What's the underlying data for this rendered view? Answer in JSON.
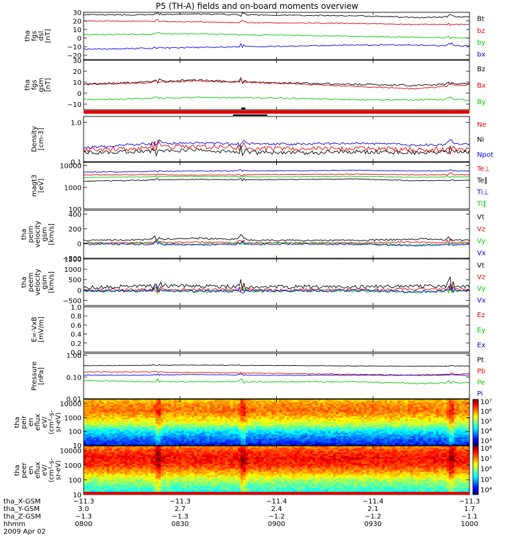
{
  "title": "P5 (TH-A) fields and on-board moments overview",
  "colors": {
    "black": "#000000",
    "red": "#e00000",
    "green": "#00c800",
    "blue": "#0000e0"
  },
  "chart_data": [
    {
      "id": "fgs_dsl",
      "type": "line",
      "ylabel": [
        "tha",
        "fgs",
        "dsl",
        "[nT]"
      ],
      "ylim": [
        -25,
        30
      ],
      "scale": "linear",
      "ticks": [
        {
          "v": 30,
          "t": "30"
        },
        {
          "v": 20,
          "t": "20"
        },
        {
          "v": 10,
          "t": "10"
        },
        {
          "v": 0,
          "t": "0"
        },
        {
          "v": -10,
          "t": "−10"
        },
        {
          "v": -20,
          "t": "−20"
        }
      ],
      "series": [
        {
          "name": "Bt",
          "color": "#000000",
          "base": [
            27,
            27,
            28,
            27,
            26.5,
            26,
            24,
            25
          ],
          "noise": 0.6
        },
        {
          "name": "bz",
          "color": "#e00000",
          "base": [
            20,
            19.5,
            19,
            18,
            17.5,
            17,
            16,
            16
          ],
          "noise": 0.5
        },
        {
          "name": "by",
          "color": "#00c800",
          "base": [
            4,
            4.5,
            5,
            4,
            3,
            2,
            1,
            0
          ],
          "noise": 0.6
        },
        {
          "name": "bx",
          "color": "#0000e0",
          "base": [
            -13,
            -12,
            -11,
            -10,
            -9,
            -8,
            -8,
            -9
          ],
          "noise": 0.7
        }
      ]
    },
    {
      "id": "fgs_gsm",
      "type": "line",
      "ylabel": [
        "tha",
        "fgs",
        "gsm",
        "[nT]"
      ],
      "ylim": [
        -15,
        30
      ],
      "scale": "linear",
      "ticks": [
        {
          "v": 30,
          "t": "30"
        },
        {
          "v": 20,
          "t": "20"
        },
        {
          "v": 10,
          "t": "10"
        },
        {
          "v": 0,
          "t": "0"
        },
        {
          "v": -10,
          "t": "−10"
        }
      ],
      "series": [
        {
          "name": "Bz",
          "color": "#000000",
          "base": [
            8,
            10,
            12,
            10,
            9,
            8,
            7,
            9
          ],
          "noise": 0.8
        },
        {
          "name": "Bx",
          "color": "#e00000",
          "base": [
            8,
            9,
            11,
            10,
            8,
            6,
            4,
            8
          ],
          "noise": 0.6
        },
        {
          "name": "By",
          "color": "#00c800",
          "base": [
            -6,
            -5,
            -4,
            -4,
            -5,
            -6,
            -6,
            -6
          ],
          "noise": 0.6
        }
      ]
    },
    {
      "id": "density",
      "type": "line",
      "ylabel": [
        "Density",
        "[cm-3]"
      ],
      "ylim": [
        0.1,
        1.4
      ],
      "scale": "log",
      "ticks": [
        {
          "v": 1.0,
          "t": "1.0"
        },
        {
          "v": 0.1,
          "t": "0.1"
        }
      ],
      "series": [
        {
          "name": "Ne",
          "color": "#e00000",
          "base": [
            0.2,
            0.22,
            0.25,
            0.22,
            0.21,
            0.22,
            0.2,
            0.2
          ],
          "noise": 0.03
        },
        {
          "name": "Ni",
          "color": "#000000",
          "base": [
            0.17,
            0.18,
            0.2,
            0.17,
            0.17,
            0.18,
            0.17,
            0.18
          ],
          "noise": 0.02
        },
        {
          "name": "Npot",
          "color": "#0000e0",
          "base": [
            0.22,
            0.28,
            0.3,
            0.28,
            0.28,
            0.3,
            0.26,
            0.28
          ],
          "noise": 0.02
        }
      ]
    },
    {
      "id": "temp",
      "type": "line",
      "ylabel": [
        "magt3",
        "[eV]"
      ],
      "ylim": [
        100,
        14000
      ],
      "scale": "log",
      "ticks": [
        {
          "v": 10000,
          "t": "10000"
        },
        {
          "v": 1000,
          "t": "1000"
        },
        {
          "v": 100,
          "t": "100"
        }
      ],
      "series": [
        {
          "name": "Te⊥",
          "color": "#e00000",
          "base": [
            3700,
            3800,
            3600,
            3800,
            3900,
            4000,
            3800,
            3800
          ],
          "noise": 150
        },
        {
          "name": "Te∥",
          "color": "#000000",
          "base": [
            1900,
            2100,
            2300,
            2200,
            2300,
            2400,
            2000,
            2100
          ],
          "noise": 80
        },
        {
          "name": "Ti⊥",
          "color": "#0000e0",
          "base": [
            5000,
            5200,
            5600,
            5600,
            5800,
            6000,
            5600,
            5600
          ],
          "noise": 200
        },
        {
          "name": "Ti∥",
          "color": "#00c800",
          "base": [
            2800,
            3000,
            3200,
            3000,
            3100,
            3200,
            2900,
            3000
          ],
          "noise": 100
        }
      ]
    },
    {
      "id": "peim",
      "type": "line",
      "ylabel": [
        "tha",
        "peim",
        "velocity",
        "gsm",
        "[km/s]"
      ],
      "ylim": [
        -200,
        450
      ],
      "scale": "linear",
      "ticks": [
        {
          "v": 400,
          "t": "400"
        },
        {
          "v": 200,
          "t": "200"
        },
        {
          "v": 0,
          "t": "0"
        },
        {
          "v": -200,
          "t": "−200"
        }
      ],
      "series": [
        {
          "name": "Vt",
          "color": "#000000",
          "base": [
            40,
            50,
            70,
            50,
            40,
            40,
            60,
            40
          ],
          "noise": 12
        },
        {
          "name": "Vz",
          "color": "#e00000",
          "base": [
            10,
            10,
            20,
            10,
            10,
            10,
            20,
            10
          ],
          "noise": 10
        },
        {
          "name": "Vy",
          "color": "#00c800",
          "base": [
            5,
            0,
            -10,
            0,
            5,
            0,
            -20,
            0
          ],
          "noise": 10
        },
        {
          "name": "Vx",
          "color": "#0000e0",
          "base": [
            -10,
            -10,
            -20,
            -10,
            -10,
            -10,
            -30,
            -10
          ],
          "noise": 10
        }
      ]
    },
    {
      "id": "peem",
      "type": "line",
      "ylabel": [
        "tha",
        "peem",
        "velocity",
        "gsm",
        "[km/s]"
      ],
      "ylim": [
        -750,
        1500
      ],
      "scale": "linear",
      "ticks": [
        {
          "v": 1500,
          "t": "1500"
        },
        {
          "v": 1000,
          "t": "1000"
        },
        {
          "v": 500,
          "t": "500"
        },
        {
          "v": 0,
          "t": "0"
        },
        {
          "v": -500,
          "t": "−500"
        }
      ],
      "series": [
        {
          "name": "Vt",
          "color": "#000000",
          "base": [
            100,
            200,
            200,
            150,
            150,
            150,
            200,
            150
          ],
          "noise": 90
        },
        {
          "name": "Vz",
          "color": "#e00000",
          "base": [
            0,
            20,
            30,
            10,
            0,
            10,
            40,
            10
          ],
          "noise": 60
        },
        {
          "name": "Vy",
          "color": "#00c800",
          "base": [
            -50,
            -50,
            -80,
            -60,
            -40,
            -50,
            -100,
            -50
          ],
          "noise": 60
        },
        {
          "name": "Vx",
          "color": "#0000e0",
          "base": [
            -30,
            -30,
            -60,
            -40,
            -30,
            -30,
            -80,
            -30
          ],
          "noise": 60
        }
      ]
    },
    {
      "id": "efield",
      "type": "line",
      "ylabel": [
        "E=-VxB",
        "[mV/m]"
      ],
      "ylim": [
        0,
        1
      ],
      "scale": "linear",
      "ticks": [
        {
          "v": 1.0,
          "t": "1.0"
        },
        {
          "v": 0.8,
          "t": "0.8"
        },
        {
          "v": 0.6,
          "t": "0.6"
        },
        {
          "v": 0.4,
          "t": "0.4"
        },
        {
          "v": 0.2,
          "t": "0.2"
        },
        {
          "v": 0.0,
          "t": "0.0"
        }
      ],
      "series": [
        {
          "name": "Ez",
          "color": "#e00000",
          "base": [],
          "noise": 0
        },
        {
          "name": "Ey",
          "color": "#00c800",
          "base": [],
          "noise": 0
        },
        {
          "name": "Ex",
          "color": "#0000e0",
          "base": [],
          "noise": 0
        }
      ]
    },
    {
      "id": "pressure",
      "type": "line",
      "ylabel": [
        "Pressure",
        "[nPa]"
      ],
      "ylim": [
        0.01,
        1.2
      ],
      "scale": "log",
      "ticks": [
        {
          "v": 1.0,
          "t": "1.00"
        },
        {
          "v": 0.1,
          "t": "0.10"
        },
        {
          "v": 0.01,
          "t": "0.01"
        }
      ],
      "series": [
        {
          "name": "Pt",
          "color": "#000000",
          "base": [
            0.33,
            0.34,
            0.35,
            0.34,
            0.33,
            0.32,
            0.31,
            0.32
          ],
          "noise": 0.008
        },
        {
          "name": "Pb",
          "color": "#e00000",
          "base": [
            0.17,
            0.17,
            0.16,
            0.15,
            0.14,
            0.13,
            0.12,
            0.14
          ],
          "noise": 0.005
        },
        {
          "name": "Pe",
          "color": "#00c800",
          "base": [
            0.07,
            0.06,
            0.06,
            0.06,
            0.06,
            0.06,
            0.05,
            0.055
          ],
          "noise": 0.004
        },
        {
          "name": "Pi",
          "color": "#0000e0",
          "base": [
            0.12,
            0.12,
            0.13,
            0.12,
            0.12,
            0.12,
            0.12,
            0.12
          ],
          "noise": 0.004
        }
      ]
    },
    {
      "id": "peir",
      "type": "heatmap",
      "ylabel": [
        "tha",
        "peir",
        "en",
        "eflux",
        "eV/",
        "(cm²-s-",
        "sr-eV)"
      ],
      "ylim": [
        10,
        20000
      ],
      "scale": "log",
      "ticks": [
        {
          "v": 10000,
          "t": "10000"
        },
        {
          "v": 1000,
          "t": "1000"
        },
        {
          "v": 100,
          "t": "100"
        },
        {
          "v": 10,
          "t": "10"
        }
      ],
      "colorbar": {
        "min": 2.5,
        "max": 7.2,
        "labels": [
          {
            "v": 7,
            "t": "10⁷"
          },
          {
            "v": 6,
            "t": "10⁶"
          },
          {
            "v": 5,
            "t": "10⁵"
          },
          {
            "v": 4,
            "t": "10⁴"
          },
          {
            "v": 3,
            "t": "10³"
          }
        ]
      },
      "profile": [
        [
          10,
          3.2
        ],
        [
          30,
          3.6
        ],
        [
          100,
          4.2
        ],
        [
          300,
          5.1
        ],
        [
          1000,
          5.7
        ],
        [
          3000,
          6.1
        ],
        [
          10000,
          5.9
        ],
        [
          20000,
          5.6
        ]
      ]
    },
    {
      "id": "peer",
      "type": "heatmap",
      "ylabel": [
        "tha",
        "peer",
        "en",
        "eflux",
        "eV/",
        "(cm²-s-",
        "sr-eV)"
      ],
      "ylim": [
        10,
        20000
      ],
      "scale": "log",
      "ticks": [
        {
          "v": 10000,
          "t": "10000"
        },
        {
          "v": 1000,
          "t": "1000"
        },
        {
          "v": 100,
          "t": "100"
        },
        {
          "v": 10,
          "t": "10"
        }
      ],
      "colorbar": {
        "min": 3.5,
        "max": 8.2,
        "labels": [
          {
            "v": 8,
            "t": "10⁸"
          },
          {
            "v": 7,
            "t": "10⁷"
          },
          {
            "v": 6,
            "t": "10⁶"
          },
          {
            "v": 5,
            "t": "10⁵"
          },
          {
            "v": 4,
            "t": "10⁴"
          }
        ]
      },
      "profile": [
        [
          10,
          5.2
        ],
        [
          30,
          5.6
        ],
        [
          100,
          6.1
        ],
        [
          300,
          6.8
        ],
        [
          1000,
          7.4
        ],
        [
          3000,
          7.6
        ],
        [
          10000,
          7.3
        ],
        [
          20000,
          6.9
        ]
      ]
    }
  ],
  "xaxis": {
    "rows": [
      {
        "label": "tha_X-GSM",
        "values": [
          "−11.3",
          "−11.3",
          "−11.4",
          "−11.4",
          "−11.3"
        ]
      },
      {
        "label": "tha_Y-GSM",
        "values": [
          "3.0",
          "2.7",
          "2.4",
          "2.1",
          "1.7"
        ]
      },
      {
        "label": "tha_Z-GSM",
        "values": [
          "−1.3",
          "−1.3",
          "−1.2",
          "−1.2",
          "−1.1"
        ]
      },
      {
        "label": "hhmm",
        "values": [
          "0800",
          "0830",
          "0900",
          "0930",
          "1000"
        ]
      }
    ],
    "date": "2009 Apr 02"
  }
}
